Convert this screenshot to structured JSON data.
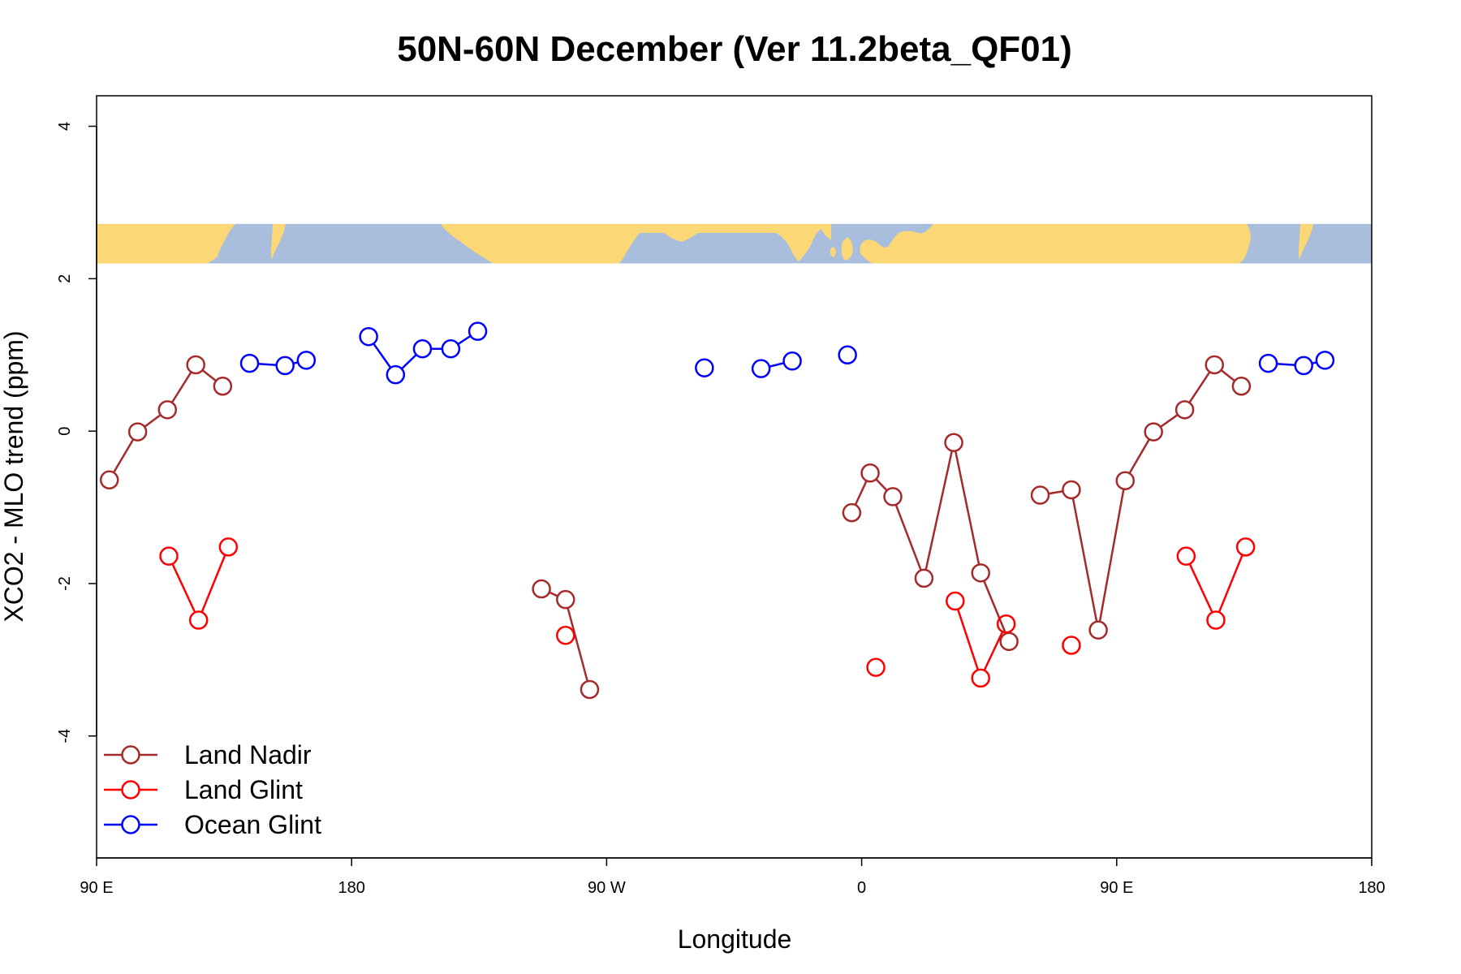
{
  "chart_data": {
    "type": "line",
    "title": "50N-60N December (Ver 11.2beta_QF01)",
    "xlabel": "Longitude",
    "ylabel": "XCO2 - MLO trend (ppm)",
    "xlim": [
      90,
      540
    ],
    "ylim": [
      -5.6,
      4.4
    ],
    "x_ticks": [
      {
        "value": 90,
        "label": "90 E"
      },
      {
        "value": 180,
        "label": "180"
      },
      {
        "value": 270,
        "label": "90 W"
      },
      {
        "value": 360,
        "label": "0"
      },
      {
        "value": 450,
        "label": "90 E"
      },
      {
        "value": 540,
        "label": "180"
      }
    ],
    "y_ticks": [
      {
        "value": 4,
        "label": "4"
      },
      {
        "value": 2,
        "label": "2"
      },
      {
        "value": 0,
        "label": "0"
      },
      {
        "value": -2,
        "label": "-2"
      },
      {
        "value": -4,
        "label": "-4"
      }
    ],
    "map_band": {
      "y_range": [
        2.2,
        2.72
      ],
      "land_color": "#fcd775",
      "ocean_color": "#a8bedc"
    },
    "series": [
      {
        "name": "Land Nadir",
        "color": "#a52a2a",
        "segments": [
          [
            [
              94.5,
              -0.64
            ],
            [
              104.5,
              -0.01
            ],
            [
              115,
              0.28
            ],
            [
              125,
              0.87
            ],
            [
              134.5,
              0.59
            ]
          ],
          [
            [
              247,
              -2.07
            ],
            [
              255.5,
              -2.21
            ],
            [
              264,
              -3.39
            ]
          ],
          [
            [
              356.5,
              -1.07
            ],
            [
              363,
              -0.55
            ],
            [
              371,
              -0.86
            ],
            [
              382,
              -1.93
            ],
            [
              392.5,
              -0.15
            ],
            [
              402,
              -1.86
            ],
            [
              412,
              -2.76
            ]
          ],
          [
            [
              423,
              -0.84
            ],
            [
              434,
              -0.77
            ],
            [
              443.5,
              -2.61
            ],
            [
              453,
              -0.65
            ],
            [
              463,
              -0.01
            ],
            [
              474,
              0.28
            ],
            [
              484.5,
              0.87
            ],
            [
              494,
              0.59
            ]
          ]
        ]
      },
      {
        "name": "Land Glint",
        "color": "#ff0000",
        "segments": [
          [
            [
              115.5,
              -1.64
            ],
            [
              126,
              -2.48
            ],
            [
              136.5,
              -1.52
            ]
          ],
          [
            [
              255.5,
              -2.68
            ]
          ],
          [
            [
              365,
              -3.1
            ]
          ],
          [
            [
              393,
              -2.23
            ],
            [
              402,
              -3.24
            ],
            [
              411,
              -2.53
            ]
          ],
          [
            [
              434,
              -2.81
            ]
          ],
          [
            [
              474.5,
              -1.64
            ],
            [
              485,
              -2.48
            ],
            [
              495.5,
              -1.52
            ]
          ]
        ]
      },
      {
        "name": "Ocean Glint",
        "color": "#0000ff",
        "segments": [
          [
            [
              144,
              0.89
            ],
            [
              156.5,
              0.86
            ],
            [
              164,
              0.93
            ]
          ],
          [
            [
              186,
              1.24
            ],
            [
              195.5,
              0.74
            ],
            [
              205,
              1.08
            ],
            [
              215,
              1.08
            ],
            [
              224.5,
              1.31
            ]
          ],
          [
            [
              304.5,
              0.83
            ]
          ],
          [
            [
              324.5,
              0.82
            ],
            [
              335.5,
              0.92
            ]
          ],
          [
            [
              355,
              1.0
            ]
          ],
          [
            [
              503.5,
              0.89
            ],
            [
              516,
              0.86
            ],
            [
              523.5,
              0.93
            ]
          ]
        ]
      }
    ],
    "legend": {
      "position": "bottom-left",
      "entries": [
        {
          "label": "Land Nadir",
          "color": "#a52a2a"
        },
        {
          "label": "Land Glint",
          "color": "#ff0000"
        },
        {
          "label": "Ocean Glint",
          "color": "#0000ff"
        }
      ]
    }
  }
}
